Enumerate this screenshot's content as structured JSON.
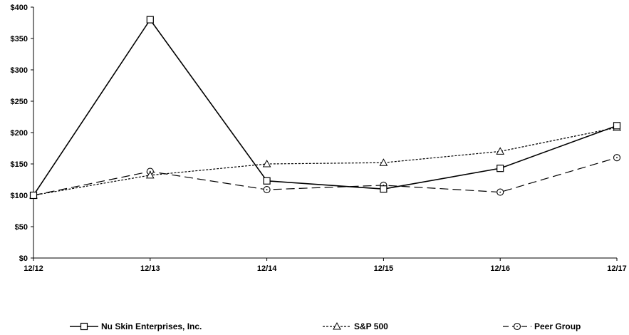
{
  "chart_data": {
    "type": "line",
    "title": "",
    "xlabel": "",
    "ylabel": "",
    "categories": [
      "12/12",
      "12/13",
      "12/14",
      "12/15",
      "12/16",
      "12/17"
    ],
    "ylim": [
      0,
      400
    ],
    "yticks": [
      0,
      50,
      100,
      150,
      200,
      250,
      300,
      350,
      400
    ],
    "ytick_labels": [
      "$0",
      "$50",
      "$100",
      "$150",
      "$200",
      "$250",
      "$300",
      "$350",
      "$400"
    ],
    "grid": false,
    "legend_position": "bottom",
    "series": [
      {
        "name": "Nu Skin Enterprises, Inc.",
        "values": [
          100,
          380,
          123,
          110,
          143,
          211
        ],
        "marker": "square",
        "dash": "solid",
        "color": "#000000"
      },
      {
        "name": "S&P 500",
        "values": [
          100,
          132,
          150,
          152,
          170,
          208
        ],
        "marker": "triangle",
        "dash": "short-dash",
        "color": "#000000"
      },
      {
        "name": "Peer Group",
        "values": [
          100,
          138,
          109,
          116,
          105,
          160
        ],
        "marker": "circle",
        "dash": "long-dash",
        "color": "#000000"
      }
    ]
  }
}
